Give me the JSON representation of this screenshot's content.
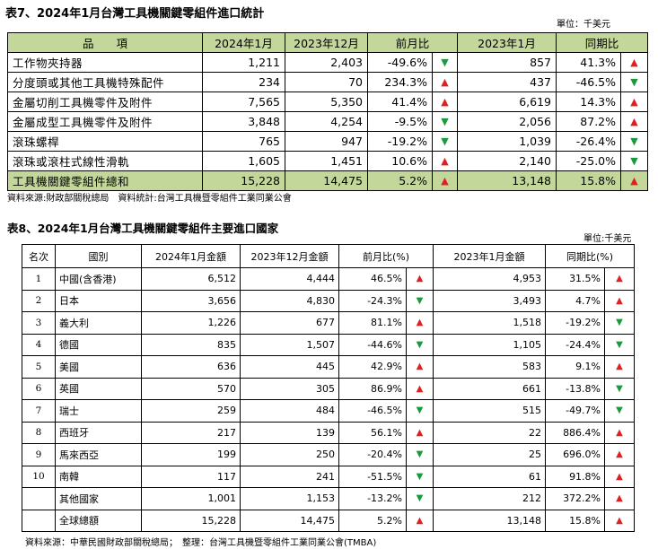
{
  "table7": {
    "title": "表7、2024年1月台灣工具機關鍵零組件進口統計",
    "unit": "單位：千美元",
    "headers": [
      "品　　項",
      "2024年1月",
      "2023年12月",
      "前月比",
      "2023年1月",
      "同期比"
    ],
    "rows": [
      {
        "name": "工作物夾持器",
        "jan2024": "1,211",
        "dec2023": "2,403",
        "mom": "-49.6%",
        "mom_dir": "down",
        "jan2023": "857",
        "yoy": "41.3%",
        "yoy_dir": "up"
      },
      {
        "name": "分度頭或其他工具機特殊配件",
        "jan2024": "234",
        "dec2023": "70",
        "mom": "234.3%",
        "mom_dir": "up",
        "jan2023": "437",
        "yoy": "-46.5%",
        "yoy_dir": "down"
      },
      {
        "name": "金屬切削工具機零件及附件",
        "jan2024": "7,565",
        "dec2023": "5,350",
        "mom": "41.4%",
        "mom_dir": "up",
        "jan2023": "6,619",
        "yoy": "14.3%",
        "yoy_dir": "up"
      },
      {
        "name": "金屬成型工具機零件及附件",
        "jan2024": "3,848",
        "dec2023": "4,254",
        "mom": "-9.5%",
        "mom_dir": "down",
        "jan2023": "2,056",
        "yoy": "87.2%",
        "yoy_dir": "up"
      },
      {
        "name": "滾珠螺桿",
        "jan2024": "765",
        "dec2023": "947",
        "mom": "-19.2%",
        "mom_dir": "down",
        "jan2023": "1,039",
        "yoy": "-26.4%",
        "yoy_dir": "down"
      },
      {
        "name": "滾珠或滾柱式線性滑軌",
        "jan2024": "1,605",
        "dec2023": "1,451",
        "mom": "10.6%",
        "mom_dir": "up",
        "jan2023": "2,140",
        "yoy": "-25.0%",
        "yoy_dir": "down"
      }
    ],
    "total": {
      "name": "工具機關鍵零組件總和",
      "jan2024": "15,228",
      "dec2023": "14,475",
      "mom": "5.2%",
      "mom_dir": "up",
      "jan2023": "13,148",
      "yoy": "15.8%",
      "yoy_dir": "up"
    },
    "source": "資料來源:財政部關稅總局　資料統計:台灣工具機暨零組件工業同業公會"
  },
  "table8": {
    "title": "表8、2024年1月台灣工具機關鍵零組件主要進口國家",
    "unit": "單位:千美元",
    "headers": [
      "名次",
      "國別",
      "2024年1月金額",
      "2023年12月金額",
      "前月比(%)",
      "2023年1月金額",
      "同期比(%)"
    ],
    "rows": [
      {
        "rank": "1",
        "country": "中國(含香港)",
        "jan2024": "6,512",
        "dec2023": "4,444",
        "mom": "46.5%",
        "mom_dir": "up",
        "jan2023": "4,953",
        "yoy": "31.5%",
        "yoy_dir": "up"
      },
      {
        "rank": "2",
        "country": "日本",
        "jan2024": "3,656",
        "dec2023": "4,830",
        "mom": "-24.3%",
        "mom_dir": "down",
        "jan2023": "3,493",
        "yoy": "4.7%",
        "yoy_dir": "up"
      },
      {
        "rank": "3",
        "country": "義大利",
        "jan2024": "1,226",
        "dec2023": "677",
        "mom": "81.1%",
        "mom_dir": "up",
        "jan2023": "1,518",
        "yoy": "-19.2%",
        "yoy_dir": "down"
      },
      {
        "rank": "4",
        "country": "德國",
        "jan2024": "835",
        "dec2023": "1,507",
        "mom": "-44.6%",
        "mom_dir": "down",
        "jan2023": "1,105",
        "yoy": "-24.4%",
        "yoy_dir": "down"
      },
      {
        "rank": "5",
        "country": "美國",
        "jan2024": "636",
        "dec2023": "445",
        "mom": "42.9%",
        "mom_dir": "up",
        "jan2023": "583",
        "yoy": "9.1%",
        "yoy_dir": "up"
      },
      {
        "rank": "6",
        "country": "英國",
        "jan2024": "570",
        "dec2023": "305",
        "mom": "86.9%",
        "mom_dir": "up",
        "jan2023": "661",
        "yoy": "-13.8%",
        "yoy_dir": "down"
      },
      {
        "rank": "7",
        "country": "瑞士",
        "jan2024": "259",
        "dec2023": "484",
        "mom": "-46.5%",
        "mom_dir": "down",
        "jan2023": "515",
        "yoy": "-49.7%",
        "yoy_dir": "down"
      },
      {
        "rank": "8",
        "country": "西班牙",
        "jan2024": "217",
        "dec2023": "139",
        "mom": "56.1%",
        "mom_dir": "up",
        "jan2023": "22",
        "yoy": "886.4%",
        "yoy_dir": "up"
      },
      {
        "rank": "9",
        "country": "馬來西亞",
        "jan2024": "199",
        "dec2023": "250",
        "mom": "-20.4%",
        "mom_dir": "down",
        "jan2023": "25",
        "yoy": "696.0%",
        "yoy_dir": "up"
      },
      {
        "rank": "10",
        "country": "南韓",
        "jan2024": "117",
        "dec2023": "241",
        "mom": "-51.5%",
        "mom_dir": "down",
        "jan2023": "61",
        "yoy": "91.8%",
        "yoy_dir": "up"
      },
      {
        "rank": "",
        "country": "其他國家",
        "jan2024": "1,001",
        "dec2023": "1,153",
        "mom": "-13.2%",
        "mom_dir": "down",
        "jan2023": "212",
        "yoy": "372.2%",
        "yoy_dir": "up"
      },
      {
        "rank": "",
        "country": "全球總額",
        "jan2024": "15,228",
        "dec2023": "14,475",
        "mom": "5.2%",
        "mom_dir": "up",
        "jan2023": "13,148",
        "yoy": "15.8%",
        "yoy_dir": "up"
      }
    ],
    "source": "資料來源：中華民國財政部關稅總局；　整理：台灣工具機暨零組件工業同業公會(TMBA)"
  },
  "icons": {
    "up": "▲",
    "down": "▼"
  },
  "colors": {
    "header_bg": "#c4d79b",
    "up": "#e02020",
    "down": "#1a9a3c"
  }
}
